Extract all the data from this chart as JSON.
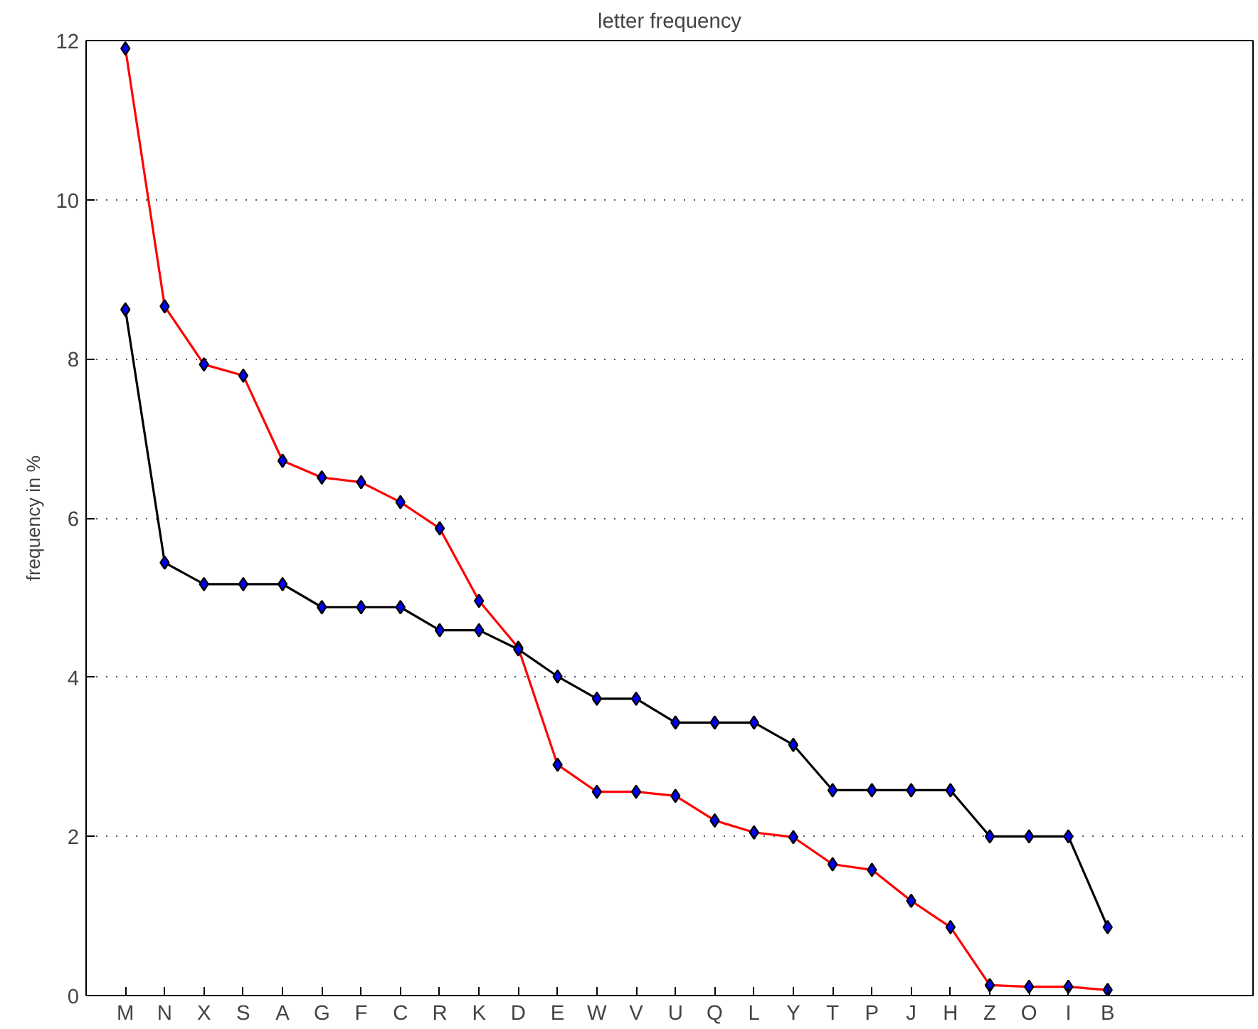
{
  "chart_data": {
    "type": "line",
    "title": "letter frequency",
    "ylabel": "frequency in %",
    "categories": [
      "M",
      "N",
      "X",
      "S",
      "A",
      "G",
      "F",
      "C",
      "R",
      "K",
      "D",
      "E",
      "W",
      "V",
      "U",
      "Q",
      "L",
      "Y",
      "T",
      "P",
      "J",
      "H",
      "Z",
      "O",
      "I",
      "B"
    ],
    "series": [
      {
        "color": "#ff0000",
        "values": [
          11.9,
          8.66,
          7.93,
          7.79,
          6.72,
          6.51,
          6.45,
          6.2,
          5.87,
          4.96,
          4.37,
          2.9,
          2.56,
          2.56,
          2.51,
          2.2,
          2.05,
          1.99,
          1.65,
          1.58,
          1.19,
          0.86,
          0.13,
          0.11,
          0.11,
          0.07
        ]
      },
      {
        "color": "#000000",
        "values": [
          8.62,
          5.44,
          5.17,
          5.17,
          5.17,
          4.88,
          4.88,
          4.88,
          4.59,
          4.59,
          4.35,
          4.01,
          3.73,
          3.73,
          3.43,
          3.43,
          3.43,
          3.15,
          2.58,
          2.58,
          2.58,
          2.58,
          2.0,
          2.0,
          2.0,
          0.86
        ]
      }
    ],
    "ylim": [
      0,
      12
    ],
    "yticks": [
      0,
      2,
      4,
      6,
      8,
      10,
      12
    ],
    "grid": "y",
    "marker": "diamond",
    "line_style": "solid"
  }
}
